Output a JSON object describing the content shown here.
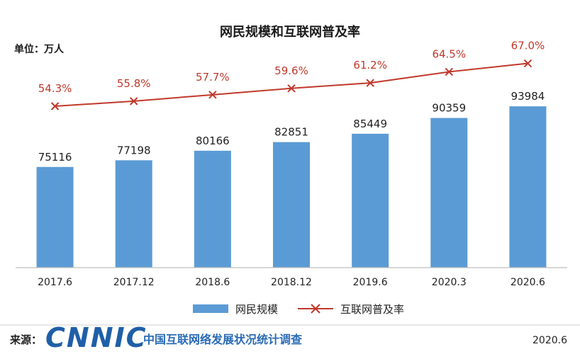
{
  "chart_data": {
    "type": "bar",
    "title": "网民规模和互联网普及率",
    "unit_label": "单位：万人",
    "categories": [
      "2017.6",
      "2017.12",
      "2018.6",
      "2018.12",
      "2019.6",
      "2020.3",
      "2020.6"
    ],
    "series": [
      {
        "name": "网民规模",
        "type": "bar",
        "color": "#5b9bd5",
        "values": [
          75116,
          77198,
          80166,
          82851,
          85449,
          90359,
          93984
        ]
      },
      {
        "name": "互联网普及率",
        "type": "line",
        "color": "#c0392b",
        "marker": "x",
        "values": [
          54.3,
          55.8,
          57.7,
          59.6,
          61.2,
          64.5,
          67.0
        ],
        "labels": [
          "54.3%",
          "55.8%",
          "57.7%",
          "59.6%",
          "61.2%",
          "64.5%",
          "67.0%"
        ]
      }
    ],
    "grid": false,
    "legend": "bottom-center"
  },
  "footer": {
    "source_label": "来源：",
    "logo_text": "CNNIC",
    "org_name": "中国互联网络发展状况统计调查",
    "date": "2020.6"
  }
}
